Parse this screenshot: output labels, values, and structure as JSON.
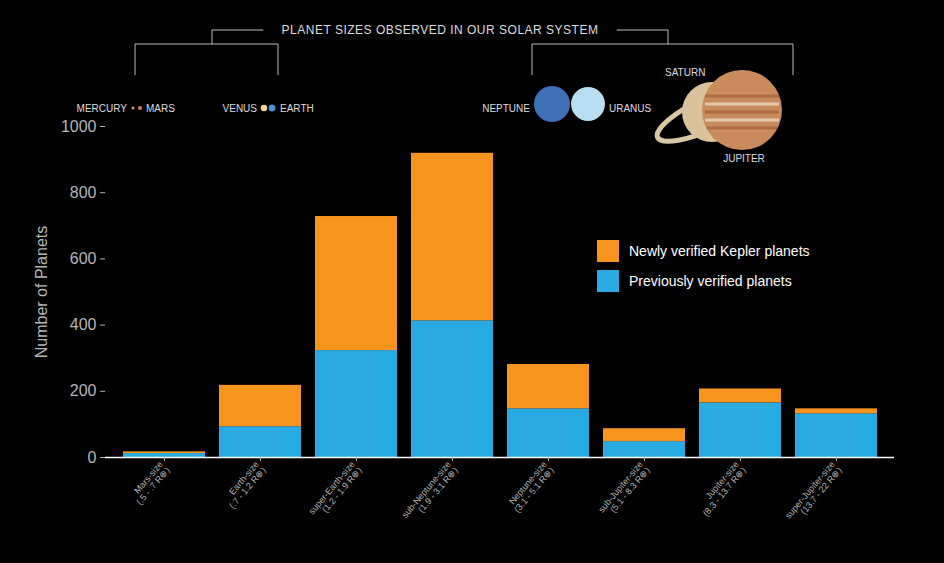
{
  "chart_data": {
    "type": "bar",
    "stacked": true,
    "title": "PLANET SIZES OBSERVED IN OUR SOLAR SYSTEM",
    "annotations": [
      "MERCURY",
      "MARS",
      "VENUS",
      "EARTH",
      "NEPTUNE",
      "URANUS",
      "SATURN",
      "JUPITER"
    ],
    "ylabel": "Number of Planets",
    "categories": [
      "Mars-size\n(.5 - .7 R⊕)",
      "Earth-size\n(.7 - 1.2 R⊕)",
      "super-Earth-size\n(1.2 - 1.9 R⊕)",
      "sub-Neptune-size\n(1.9 - 3.1 R⊕)",
      "Neptune-size\n(3.1 - 5.1 R⊕)",
      "sub-Jupiter-size\n(5.1 - 8.3 R⊕)",
      "Jupiter-size\n(8.3 - 13.7 R⊕)",
      "super-Jupiter-size\n(13.7 - 22 R⊕)"
    ],
    "series": [
      {
        "name": "Newly verified Kepler planets",
        "color": "#f7941d",
        "values": [
          5,
          125,
          405,
          506,
          134,
          39,
          42,
          15
        ]
      },
      {
        "name": "Previously verified planets",
        "color": "#29abe2",
        "values": [
          12,
          93,
          323,
          413,
          147,
          48,
          165,
          132
        ]
      }
    ],
    "ylim": [
      0,
      1000
    ],
    "yticks": [
      0,
      200,
      400,
      600,
      800,
      1000
    ],
    "grid": false,
    "legend": "right"
  }
}
